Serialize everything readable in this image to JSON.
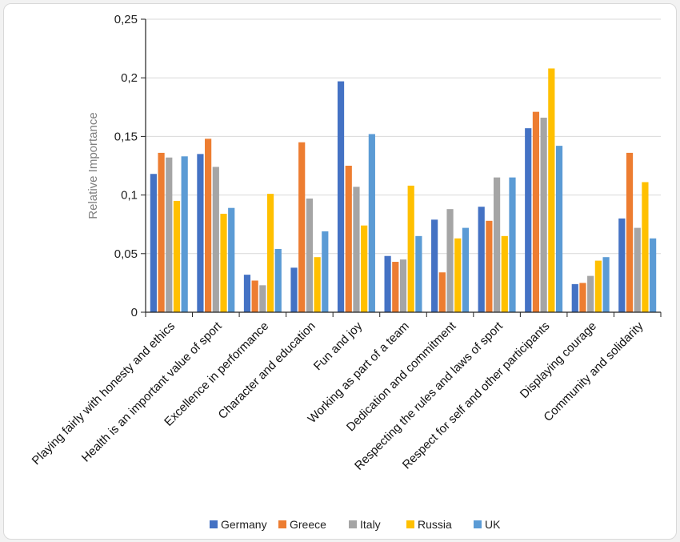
{
  "chart_data": {
    "type": "bar",
    "title": "",
    "xlabel": "",
    "ylabel": "Relative Importance",
    "ylim": [
      0,
      0.25
    ],
    "yticks": [
      0,
      0.05,
      0.1,
      0.15,
      0.2,
      0.25
    ],
    "ytick_labels": [
      "0",
      "0,05",
      "0,1",
      "0,15",
      "0,2",
      "0,25"
    ],
    "grid": true,
    "legend_position": "bottom",
    "categories": [
      "Playing fairly with honesty and ethics",
      "Health is an important value of sport",
      "Excellence in performance",
      "Character and education",
      "Fun and joy",
      "Working as part of a team",
      "Dedication and commitment",
      "Respecting the rules and laws of sport",
      "Respect for self and other participants",
      "Displaying courage",
      "Community and solidarity"
    ],
    "series": [
      {
        "name": "Germany",
        "color": "#4472c4",
        "values": [
          0.118,
          0.135,
          0.032,
          0.038,
          0.197,
          0.048,
          0.079,
          0.09,
          0.157,
          0.024,
          0.08
        ]
      },
      {
        "name": "Greece",
        "color": "#ed7d31",
        "values": [
          0.136,
          0.148,
          0.027,
          0.145,
          0.125,
          0.043,
          0.034,
          0.078,
          0.171,
          0.025,
          0.136
        ]
      },
      {
        "name": "Italy",
        "color": "#a5a5a5",
        "values": [
          0.132,
          0.124,
          0.023,
          0.097,
          0.107,
          0.045,
          0.088,
          0.115,
          0.166,
          0.031,
          0.072
        ]
      },
      {
        "name": "Russia",
        "color": "#ffc000",
        "values": [
          0.095,
          0.084,
          0.101,
          0.047,
          0.074,
          0.108,
          0.063,
          0.065,
          0.208,
          0.044,
          0.111
        ]
      },
      {
        "name": "UK",
        "color": "#5b9bd5",
        "values": [
          0.133,
          0.089,
          0.054,
          0.069,
          0.152,
          0.065,
          0.072,
          0.115,
          0.142,
          0.047,
          0.063
        ]
      }
    ]
  }
}
